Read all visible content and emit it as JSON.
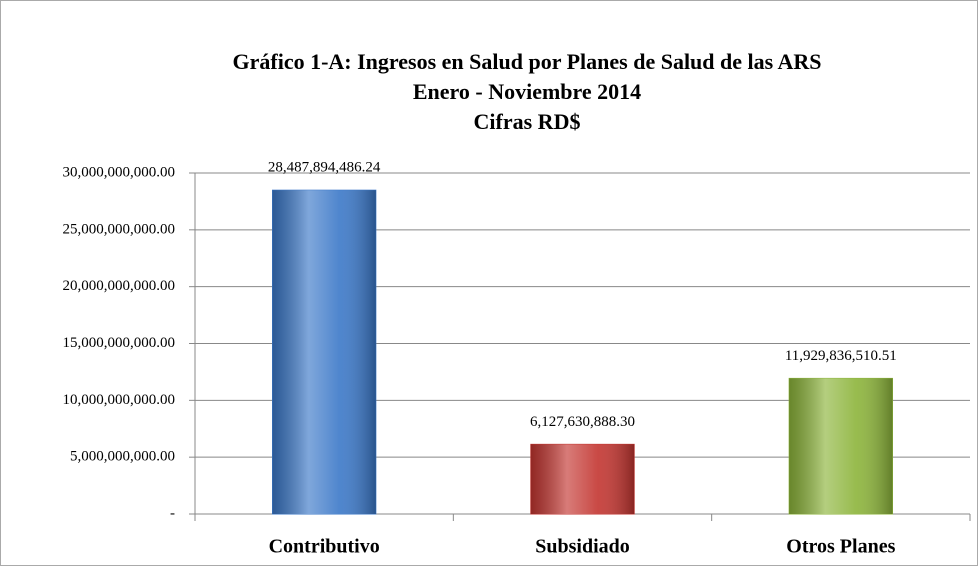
{
  "chart_data": {
    "type": "bar",
    "title": [
      "Gráfico 1-A: Ingresos en Salud por  Planes de Salud de las ARS",
      "Enero - Noviembre 2014",
      "Cifras RD$"
    ],
    "categories": [
      "Contributivo",
      "Subsidiado",
      "Otros Planes"
    ],
    "values": [
      28487894486.24,
      6127630888.3,
      11929836510.51
    ],
    "value_labels": [
      "28,487,894,486.24",
      "6,127,630,888.30",
      "11,929,836,510.51"
    ],
    "colors": [
      "#3b78c8",
      "#c33530",
      "#8cb43a"
    ],
    "ylim": [
      0,
      30000000000
    ],
    "yticks": [
      {
        "value": 0,
        "label": "-"
      },
      {
        "value": 5000000000,
        "label": "5,000,000,000.00"
      },
      {
        "value": 10000000000,
        "label": "10,000,000,000.00"
      },
      {
        "value": 15000000000,
        "label": "15,000,000,000.00"
      },
      {
        "value": 20000000000,
        "label": "20,000,000,000.00"
      },
      {
        "value": 25000000000,
        "label": "25,000,000,000.00"
      },
      {
        "value": 30000000000,
        "label": "30,000,000,000.00"
      }
    ],
    "grid": true
  }
}
